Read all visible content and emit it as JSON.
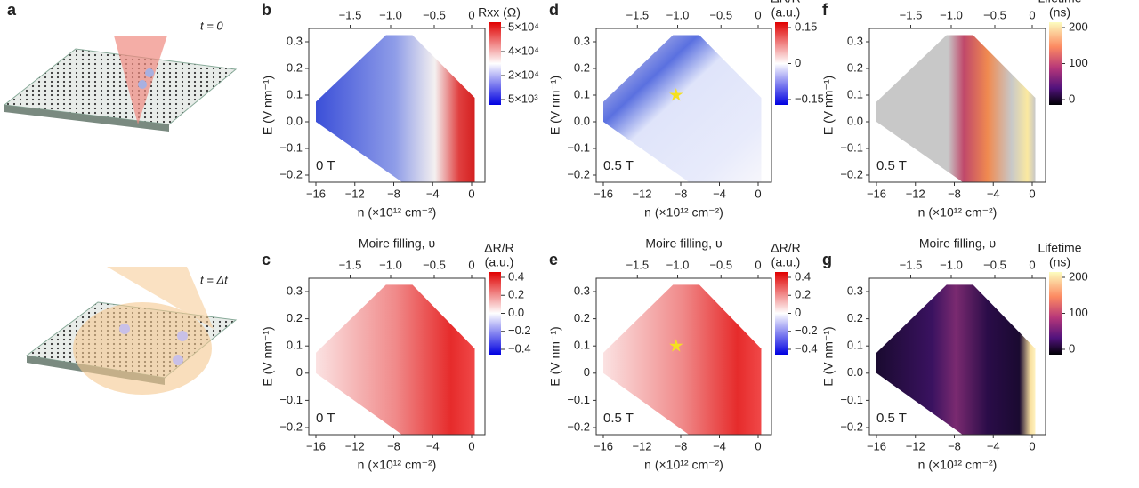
{
  "panel_a": {
    "label": "a",
    "top_caption": "t = 0",
    "bottom_caption": "t = Δt"
  },
  "panels": [
    {
      "label": "b",
      "field": "0 T",
      "x_label": "n (×10¹² cm⁻²)",
      "y_label": "E (V nm⁻¹)",
      "x_ticks": [
        "−16",
        "−12",
        "−8",
        "−4",
        "0"
      ],
      "y_ticks": [
        "0.3",
        "0.2",
        "0.1",
        "0.0",
        "−0.1",
        "−0.2"
      ],
      "top_ticks": [
        "−1.5",
        "−1.0",
        "−0.5",
        "0"
      ],
      "colorbar": {
        "title": [
          "Rxx (Ω)"
        ],
        "ticks": [
          "5×10⁴",
          "4×10⁴",
          "2×10⁴",
          "5×10³"
        ]
      }
    },
    {
      "label": "d",
      "field": "0.5 T",
      "x_label": "n (×10¹² cm⁻²)",
      "y_label": "E (V nm⁻¹)",
      "x_ticks": [
        "−16",
        "−12",
        "−8",
        "−4",
        "0"
      ],
      "y_ticks": [
        "0.3",
        "0.2",
        "0.1",
        "0.0",
        "−0.1",
        "−0.2"
      ],
      "top_ticks": [
        "−1.5",
        "−1.0",
        "−0.5",
        "0"
      ],
      "colorbar": {
        "title": [
          "ΔR/R",
          "(a.u.)"
        ],
        "ticks": [
          "0.15",
          "0",
          "−0.15"
        ]
      }
    },
    {
      "label": "f",
      "field": "0.5 T",
      "x_label": "n (×10¹² cm⁻²)",
      "y_label": "E (V nm⁻¹)",
      "x_ticks": [
        "−16",
        "−12",
        "−8",
        "−4",
        "0"
      ],
      "y_ticks": [
        "0.3",
        "0.2",
        "0.1",
        "0.0",
        "−0.1",
        "−0.2"
      ],
      "top_ticks": [
        "−1.5",
        "−1.0",
        "−0.5",
        "0"
      ],
      "colorbar": {
        "title": [
          "Lifetime",
          "(ns)"
        ],
        "ticks": [
          "200",
          "100",
          "0"
        ]
      }
    },
    {
      "label": "c",
      "field": "0 T",
      "x_label": "n (×10¹² cm⁻²)",
      "y_label": "E (V nm⁻¹)",
      "top_title": "Moire filling, υ",
      "x_ticks": [
        "−16",
        "−12",
        "−8",
        "−4",
        "0"
      ],
      "y_ticks": [
        "0.3",
        "0.2",
        "0.1",
        "0",
        "−0.1",
        "−0.2"
      ],
      "top_ticks": [
        "−1.5",
        "−1.0",
        "−0.5",
        "0"
      ],
      "colorbar": {
        "title": [
          "ΔR/R",
          "(a.u.)"
        ],
        "ticks": [
          "0.4",
          "0.2",
          "0.0",
          "−0.2",
          "−0.4"
        ]
      }
    },
    {
      "label": "e",
      "field": "0.5 T",
      "x_label": "n (×10¹² cm⁻²)",
      "y_label": "E (V nm⁻¹)",
      "top_title": "Moire filling, υ",
      "x_ticks": [
        "−16",
        "−12",
        "−8",
        "−4",
        "0"
      ],
      "y_ticks": [
        "0.3",
        "0.2",
        "0.1",
        "0",
        "−0.1",
        "−0.2"
      ],
      "top_ticks": [
        "−1.5",
        "−1.0",
        "−0.5",
        "0"
      ],
      "colorbar": {
        "title": [
          "ΔR/R",
          "(a.u.)"
        ],
        "ticks": [
          "0.4",
          "0.2",
          "0",
          "−0.2",
          "−0.4"
        ]
      }
    },
    {
      "label": "g",
      "field": "0.5 T",
      "x_label": "n (×10¹² cm⁻²)",
      "y_label": "E (V nm⁻¹)",
      "top_title": "Moire filling, υ",
      "x_ticks": [
        "−16",
        "−12",
        "−8",
        "−4",
        "0"
      ],
      "y_ticks": [
        "0.3",
        "0.2",
        "0.1",
        "0.0",
        "−0.1",
        "−0.2"
      ],
      "top_ticks": [
        "−1.5",
        "−1.0",
        "−0.5",
        "0"
      ],
      "colorbar": {
        "title": [
          "Lifetime",
          "(ns)"
        ],
        "ticks": [
          "200",
          "100",
          "0"
        ]
      }
    }
  ]
}
